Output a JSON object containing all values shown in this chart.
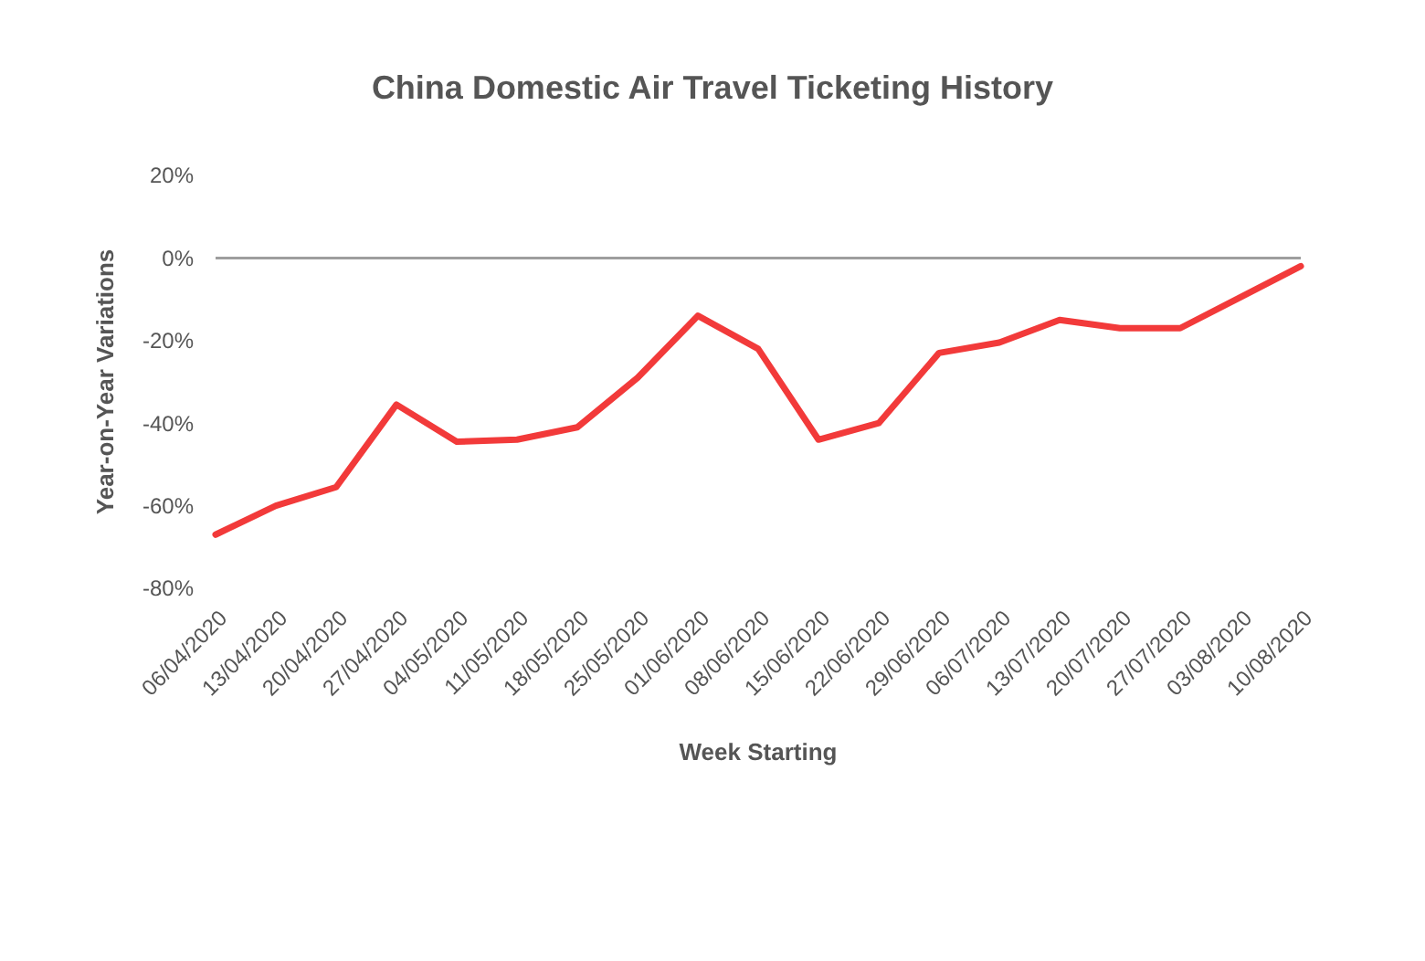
{
  "chart_data": {
    "type": "line",
    "title": "China Domestic Air Travel Ticketing History",
    "xlabel": "Week Starting",
    "ylabel": "Year-on-Year Variations",
    "categories": [
      "06/04/2020",
      "13/04/2020",
      "20/04/2020",
      "27/04/2020",
      "04/05/2020",
      "11/05/2020",
      "18/05/2020",
      "25/05/2020",
      "01/06/2020",
      "08/06/2020",
      "15/06/2020",
      "22/06/2020",
      "29/06/2020",
      "06/07/2020",
      "13/07/2020",
      "20/07/2020",
      "27/07/2020",
      "03/08/2020",
      "10/08/2020"
    ],
    "series": [
      {
        "color": "#f23a3a",
        "values": [
          -67,
          -60,
          -55.5,
          -35.5,
          -44.5,
          -44,
          -41,
          -29,
          -14,
          -22,
          -44,
          -40,
          -23,
          -20.5,
          -15,
          -17,
          -17,
          -9.5,
          -2
        ]
      }
    ],
    "ylim": [
      -80,
      20
    ],
    "yticks": [
      {
        "value": -80,
        "label": "-80%"
      },
      {
        "value": -60,
        "label": "-60%"
      },
      {
        "value": -40,
        "label": "-40%"
      },
      {
        "value": -20,
        "label": "-20%"
      },
      {
        "value": 0,
        "label": "0%"
      },
      {
        "value": 20,
        "label": "20%"
      }
    ],
    "ref_lines": [
      {
        "axis": "y",
        "value": 0,
        "color": "#9e9e9e"
      }
    ],
    "marker": "none",
    "line_style": "solid"
  }
}
